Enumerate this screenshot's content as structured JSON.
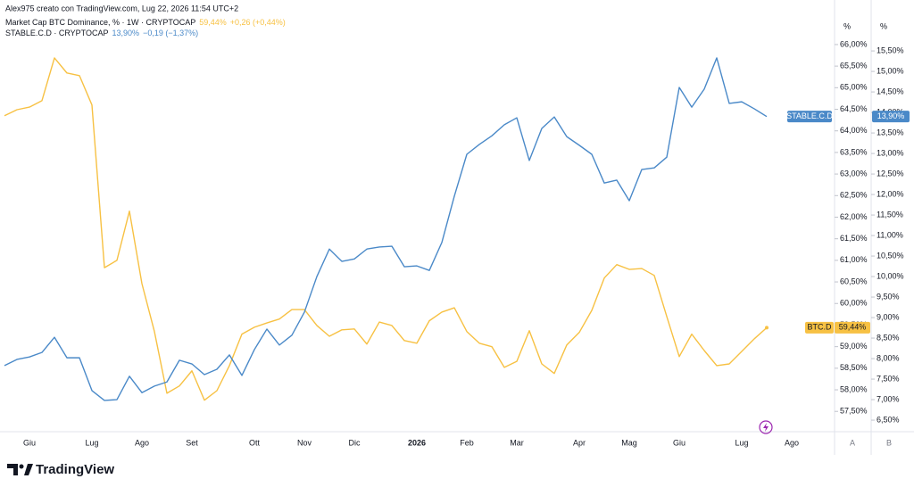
{
  "header": {
    "attribution": "Alex975 creato con TradingView.com, Lug 22, 2026 11:54 UTC+2"
  },
  "brand": "TradingView",
  "chart_data": {
    "type": "line",
    "categories": [
      null,
      null,
      "Giu",
      null,
      null,
      null,
      null,
      "Lug",
      null,
      null,
      null,
      "Ago",
      null,
      null,
      null,
      "Set",
      null,
      null,
      null,
      null,
      "Ott",
      null,
      null,
      null,
      "Nov",
      null,
      null,
      null,
      "Dic",
      null,
      null,
      null,
      null,
      "2026",
      null,
      null,
      null,
      "Feb",
      null,
      null,
      null,
      "Mar",
      null,
      null,
      null,
      null,
      "Apr",
      null,
      null,
      null,
      "Mag",
      null,
      null,
      null,
      "Giu",
      null,
      null,
      null,
      null,
      "Lug",
      null,
      null,
      null,
      "Ago"
    ],
    "series": [
      {
        "name": "BTC.D",
        "legend": "Market Cap BTC Dominance, % · 1W · CRYPTOCAP",
        "color": "#f7c143",
        "last_label": "59,44%",
        "change": "+0,26 (+0,44%)",
        "values": [
          64.35,
          64.49,
          64.55,
          64.7,
          65.69,
          65.34,
          65.28,
          64.6,
          60.83,
          61.0,
          62.14,
          60.46,
          59.35,
          57.92,
          58.09,
          58.44,
          57.76,
          57.98,
          58.56,
          59.29,
          59.45,
          59.55,
          59.64,
          59.86,
          59.86,
          59.49,
          59.24,
          59.39,
          59.41,
          59.06,
          59.57,
          59.49,
          59.14,
          59.08,
          59.6,
          59.8,
          59.9,
          59.35,
          59.08,
          59.0,
          58.52,
          58.66,
          59.37,
          58.6,
          58.38,
          59.04,
          59.33,
          59.84,
          60.59,
          60.9,
          60.79,
          60.81,
          60.65,
          59.7,
          58.77,
          59.29,
          58.91,
          58.56,
          58.6,
          58.89,
          59.18,
          59.44,
          null,
          null
        ]
      },
      {
        "name": "STABLE.C.D",
        "legend": "STABLE.C.D · CRYPTOCAP",
        "color": "#4a89c8",
        "axis": "y2",
        "last_label": "13,90%",
        "change": "−0,19 (−1,37%)",
        "values": [
          7.83,
          7.98,
          8.04,
          8.15,
          8.52,
          8.02,
          8.02,
          7.22,
          6.98,
          7.0,
          7.57,
          7.17,
          7.33,
          7.43,
          7.96,
          7.87,
          7.61,
          7.74,
          8.09,
          7.59,
          8.22,
          8.72,
          8.33,
          8.57,
          9.13,
          10.0,
          10.67,
          10.37,
          10.43,
          10.67,
          10.72,
          10.74,
          10.24,
          10.26,
          10.15,
          10.83,
          11.96,
          12.98,
          13.22,
          13.43,
          13.7,
          13.87,
          12.83,
          13.61,
          13.89,
          13.41,
          13.2,
          12.98,
          12.28,
          12.35,
          11.85,
          12.61,
          12.65,
          12.91,
          14.61,
          14.13,
          14.57,
          15.33,
          14.22,
          14.26,
          14.09,
          13.9,
          null,
          null
        ]
      }
    ],
    "yunit": "%",
    "y2unit": "%",
    "ylim": [
      57.05,
      66.66
    ],
    "yticks": [
      {
        "value": 57.5,
        "label": "57,50%"
      },
      {
        "value": 58,
        "label": "58,00%"
      },
      {
        "value": 58.5,
        "label": "58,50%"
      },
      {
        "value": 59,
        "label": "59,00%"
      },
      {
        "value": 59.5,
        "label": "59,50%"
      },
      {
        "value": 60,
        "label": "60,00%"
      },
      {
        "value": 60.5,
        "label": "60,50%"
      },
      {
        "value": 61,
        "label": "61,00%"
      },
      {
        "value": 61.5,
        "label": "61,50%"
      },
      {
        "value": 62,
        "label": "62,00%"
      },
      {
        "value": 62.5,
        "label": "62,50%"
      },
      {
        "value": 63,
        "label": "63,00%"
      },
      {
        "value": 63.5,
        "label": "63,50%"
      },
      {
        "value": 64,
        "label": "64,00%"
      },
      {
        "value": 64.5,
        "label": "64,50%"
      },
      {
        "value": 65,
        "label": "65,00%"
      },
      {
        "value": 65.5,
        "label": "65,50%"
      },
      {
        "value": 66,
        "label": "66,00%"
      }
    ],
    "y2lim": [
      6.24,
      16.35
    ],
    "y2ticks": [
      {
        "value": 6.5,
        "label": "6,50%"
      },
      {
        "value": 7,
        "label": "7,00%"
      },
      {
        "value": 7.5,
        "label": "7,50%"
      },
      {
        "value": 8,
        "label": "8,00%"
      },
      {
        "value": 8.5,
        "label": "8,50%"
      },
      {
        "value": 9,
        "label": "9,00%"
      },
      {
        "value": 9.5,
        "label": "9,50%"
      },
      {
        "value": 10,
        "label": "10,00%"
      },
      {
        "value": 10.5,
        "label": "10,50%"
      },
      {
        "value": 11,
        "label": "11,00%"
      },
      {
        "value": 11.5,
        "label": "11,50%"
      },
      {
        "value": 12,
        "label": "12,00%"
      },
      {
        "value": 12.5,
        "label": "12,50%"
      },
      {
        "value": 13,
        "label": "13,00%"
      },
      {
        "value": 13.5,
        "label": "13,50%"
      },
      {
        "value": 14,
        "label": "14,00%"
      },
      {
        "value": 14.5,
        "label": "14,50%"
      },
      {
        "value": 15,
        "label": "15,00%"
      },
      {
        "value": 15.5,
        "label": "15,50%"
      }
    ],
    "grid": false,
    "scale_buttons": [
      "A",
      "B"
    ]
  }
}
